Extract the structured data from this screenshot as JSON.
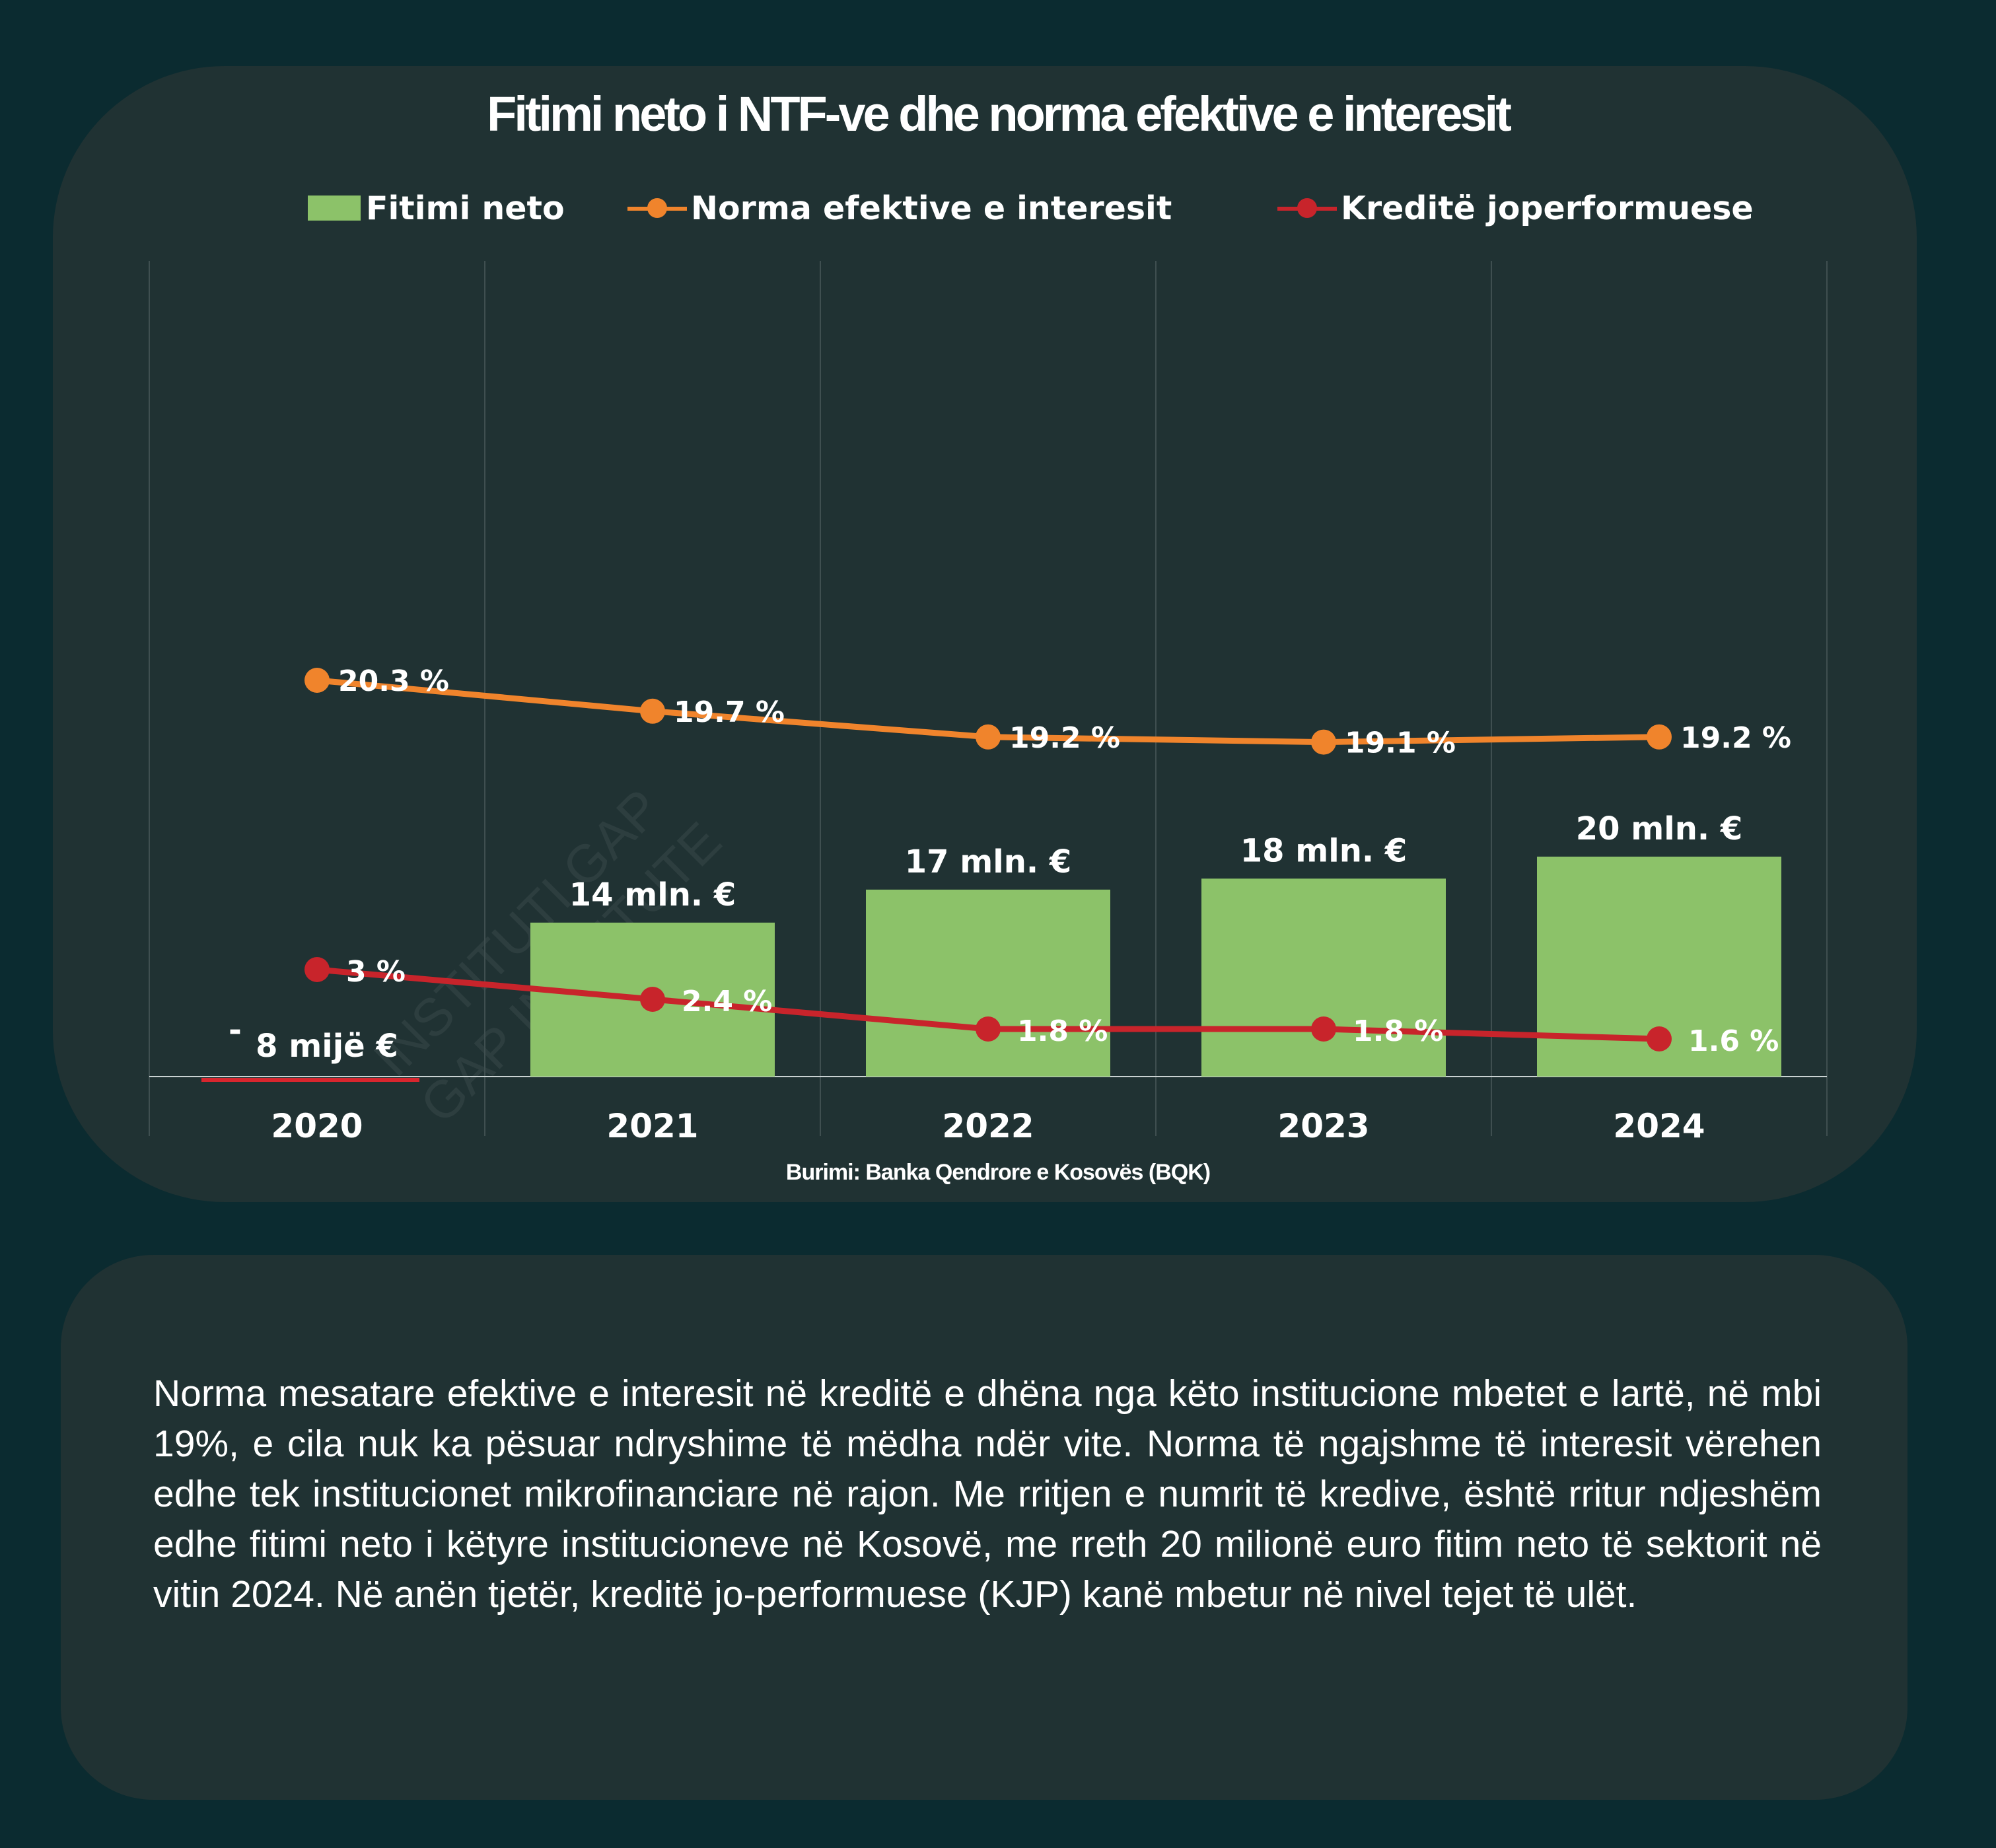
{
  "chart_data": {
    "type": "bar",
    "title": "Fitimi neto i NTF-ve dhe norma efektive e interesit",
    "categories": [
      "2020",
      "2021",
      "2022",
      "2023",
      "2024"
    ],
    "series": [
      {
        "name": "Fitimi neto",
        "kind": "bar",
        "unit": "mln. €",
        "values": [
          -0.008,
          14,
          17,
          18,
          20
        ],
        "labels": [
          "8 mijë €",
          "14 mln. €",
          "17 mln. €",
          "18 mln. €",
          "20 mln. €"
        ],
        "label_prefixes": [
          "-",
          "",
          "",
          "",
          ""
        ]
      },
      {
        "name": "Norma efektive e interesit",
        "kind": "line",
        "unit": "%",
        "values": [
          20.3,
          19.7,
          19.2,
          19.1,
          19.2
        ],
        "labels": [
          "20.3  %",
          "19.7 %",
          "19.2 %",
          "19.1 %",
          "19.2 %"
        ]
      },
      {
        "name": "Kreditë joperformuese",
        "kind": "line",
        "unit": "%",
        "values": [
          3,
          2.4,
          1.8,
          1.8,
          1.6
        ],
        "labels": [
          "3 %",
          "2.4 %",
          "1.8 %",
          "1.8 %",
          "1.6 %"
        ]
      }
    ],
    "colors": {
      "bar": "#8cc269",
      "interest": "#f0842c",
      "npl": "#c8242b",
      "negative_bar": "#d8262e"
    },
    "grid": {
      "vertical": true,
      "horizontal": false
    },
    "legend_position": "top",
    "source": "Burimi: Banka Qendrore e Kosovës (BQK)"
  },
  "watermark": {
    "line1": "INSTITUTI GAP",
    "line2": "GAP INSTITUTE"
  },
  "body_text": "Norma mesatare efektive e interesit në kreditë e dhëna nga këto institucione mbetet e lartë, në mbi 19%, e cila nuk ka pësuar ndryshime të mëdha ndër vite. Norma të ngajshme të interesit vërehen edhe tek institucionet mikrofinanciare në rajon. Me rritjen e numrit të kredive, është rritur ndjeshëm edhe fitimi neto i këtyre institucioneve në Kosovë, me rreth 20 milionë euro fitim neto të sektorit në vitin 2024. Në anën tjetër, kreditë jo-performuese (KJP) kanë mbetur në nivel tejet të ulët."
}
